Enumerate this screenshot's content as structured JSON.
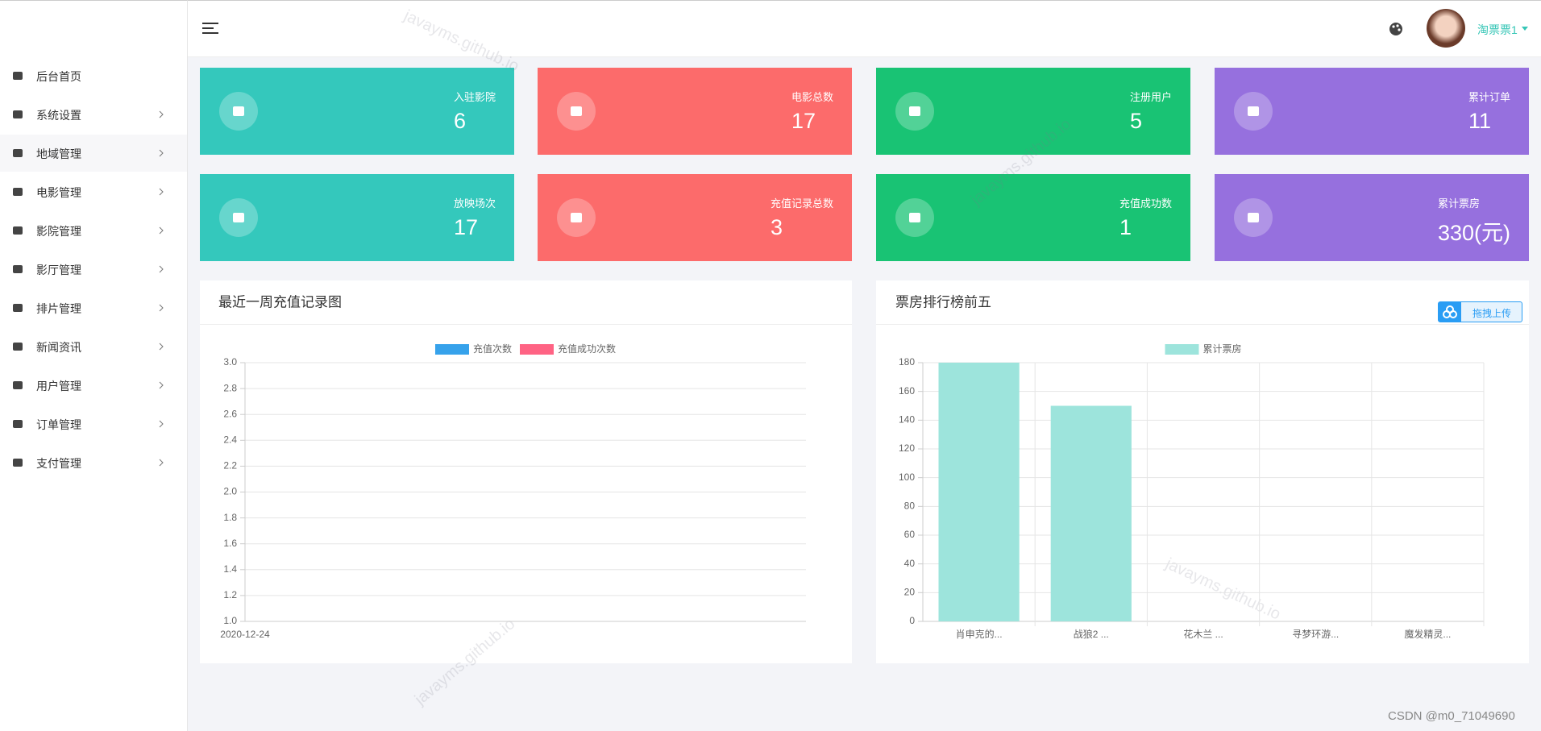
{
  "header": {
    "user": "淘票票1"
  },
  "sidebar": {
    "items": [
      "后台首页",
      "系统设置",
      "地域管理",
      "电影管理",
      "影院管理",
      "影厅管理",
      "排片管理",
      "新闻资讯",
      "用户管理",
      "订单管理",
      "支付管理"
    ]
  },
  "cards": [
    {
      "label": "入驻影院",
      "value": 6,
      "color": "#34c8bc"
    },
    {
      "label": "电影总数",
      "value": 17,
      "color": "#fc6b6b"
    },
    {
      "label": "注册用户",
      "value": 5,
      "color": "#19c374"
    },
    {
      "label": "累计订单",
      "value": 11,
      "color": "#9670de"
    },
    {
      "label": "放映场次",
      "value": 17,
      "color": "#34c8bc"
    },
    {
      "label": "充值记录总数",
      "value": 3,
      "color": "#fc6b6b"
    },
    {
      "label": "充值成功数",
      "value": 1,
      "color": "#19c374"
    },
    {
      "label": "累计票房",
      "value": 330,
      "value_label": "330(元)",
      "color": "#9670de"
    }
  ],
  "upload_button": "拖拽上传",
  "watermark": "javayms.github.io",
  "footer": "CSDN @m0_71049690",
  "chart_data": [
    {
      "type": "line",
      "title": "最近一周充值记录图",
      "categories": [
        "2020-12-24"
      ],
      "series": [
        {
          "name": "充值次数",
          "color": "#36a2eb",
          "values": [
            null
          ]
        },
        {
          "name": "充值成功次数",
          "color": "#ff6384",
          "values": [
            null
          ]
        }
      ],
      "ylim": [
        1,
        3
      ],
      "yticks": [
        {
          "value": 1,
          "label": "1.0"
        },
        {
          "value": 1.2,
          "label": "1.2"
        },
        {
          "value": 1.4,
          "label": "1.4"
        },
        {
          "value": 1.6,
          "label": "1.6"
        },
        {
          "value": 1.8,
          "label": "1.8"
        },
        {
          "value": 2,
          "label": "2.0"
        },
        {
          "value": 2.2,
          "label": "2.2"
        },
        {
          "value": 2.4,
          "label": "2.4"
        },
        {
          "value": 2.6,
          "label": "2.6"
        },
        {
          "value": 2.8,
          "label": "2.8"
        },
        {
          "value": 3,
          "label": "3.0"
        }
      ],
      "grid": true,
      "xgrid": false
    },
    {
      "type": "bar",
      "title": "票房排行榜前五",
      "categories": [
        "肖申克的...",
        "战狼2 ...",
        "花木兰 ...",
        "寻梦环游...",
        "魔发精灵..."
      ],
      "series": [
        {
          "name": "累计票房",
          "color": "#9de4dc",
          "values": [
            180,
            150,
            0,
            0,
            0
          ]
        }
      ],
      "ylim": [
        0,
        180
      ],
      "yticks": [
        0,
        20,
        40,
        60,
        80,
        100,
        120,
        140,
        160,
        180
      ],
      "grid": true,
      "xgrid": true
    }
  ]
}
